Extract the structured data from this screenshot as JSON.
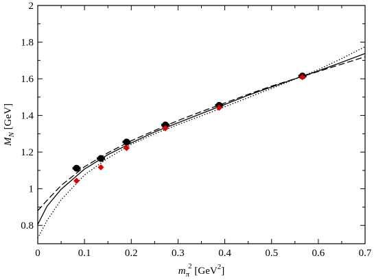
{
  "chart_data": {
    "type": "scatter",
    "xlabel": {
      "main": "m",
      "sub": "π",
      "sup": "2",
      "units_pre": " [GeV",
      "units_sup": "2",
      "units_post": "]"
    },
    "ylabel": {
      "main": "M",
      "sub": "N",
      "units": " [GeV]"
    },
    "xlim": [
      0,
      0.7
    ],
    "ylim": [
      0.7,
      2.0
    ],
    "xticks": [
      0,
      0.1,
      0.2,
      0.3,
      0.4,
      0.5,
      0.6,
      0.7
    ],
    "yticks": [
      0.8,
      1.0,
      1.2,
      1.4,
      1.6,
      1.8,
      2.0
    ],
    "xtick_labels": [
      "0",
      "0.1",
      "0.2",
      "0.3",
      "0.4",
      "0.5",
      "0.6",
      "0.7"
    ],
    "ytick_labels": [
      "0.8",
      "1",
      "1.2",
      "1.4",
      "1.6",
      "1.8",
      "2"
    ],
    "grid": false,
    "series": [
      {
        "marker": "circle",
        "color": "#000000",
        "points": [
          {
            "x": 0.083,
            "y": 1.112,
            "xerr": 0.008,
            "yerr": 0.015
          },
          {
            "x": 0.135,
            "y": 1.165,
            "xerr": 0.008,
            "yerr": 0.012
          },
          {
            "x": 0.19,
            "y": 1.255,
            "xerr": 0.008,
            "yerr": 0.012
          },
          {
            "x": 0.273,
            "y": 1.348,
            "xerr": 0.008,
            "yerr": 0.012
          },
          {
            "x": 0.388,
            "y": 1.455,
            "xerr": 0.008,
            "yerr": 0.012
          },
          {
            "x": 0.566,
            "y": 1.615,
            "xerr": 0.008,
            "yerr": 0.012
          }
        ]
      },
      {
        "marker": "diamond",
        "color": "#e00000",
        "points": [
          {
            "x": 0.083,
            "y": 1.043
          },
          {
            "x": 0.135,
            "y": 1.117
          },
          {
            "x": 0.19,
            "y": 1.222
          },
          {
            "x": 0.273,
            "y": 1.33
          },
          {
            "x": 0.388,
            "y": 1.442
          },
          {
            "x": 0.566,
            "y": 1.609
          }
        ]
      }
    ],
    "curves": [
      {
        "style": "solid",
        "points": [
          [
            0.0,
            0.805
          ],
          [
            0.02,
            0.905
          ],
          [
            0.05,
            0.997
          ],
          [
            0.1,
            1.107
          ],
          [
            0.15,
            1.186
          ],
          [
            0.2,
            1.25
          ],
          [
            0.25,
            1.31
          ],
          [
            0.3,
            1.36
          ],
          [
            0.35,
            1.41
          ],
          [
            0.4,
            1.46
          ],
          [
            0.45,
            1.51
          ],
          [
            0.5,
            1.555
          ],
          [
            0.55,
            1.6
          ],
          [
            0.6,
            1.643
          ],
          [
            0.65,
            1.69
          ],
          [
            0.7,
            1.738
          ]
        ]
      },
      {
        "style": "dashed",
        "points": [
          [
            0.0,
            0.88
          ],
          [
            0.02,
            0.937
          ],
          [
            0.05,
            1.018
          ],
          [
            0.1,
            1.12
          ],
          [
            0.15,
            1.196
          ],
          [
            0.2,
            1.262
          ],
          [
            0.25,
            1.318
          ],
          [
            0.3,
            1.372
          ],
          [
            0.35,
            1.421
          ],
          [
            0.4,
            1.468
          ],
          [
            0.45,
            1.515
          ],
          [
            0.5,
            1.56
          ],
          [
            0.55,
            1.6
          ],
          [
            0.6,
            1.64
          ],
          [
            0.65,
            1.68
          ],
          [
            0.7,
            1.72
          ]
        ]
      },
      {
        "style": "dotted",
        "points": [
          [
            0.0,
            0.73
          ],
          [
            0.02,
            0.827
          ],
          [
            0.05,
            0.94
          ],
          [
            0.1,
            1.075
          ],
          [
            0.15,
            1.167
          ],
          [
            0.2,
            1.242
          ],
          [
            0.25,
            1.3
          ],
          [
            0.3,
            1.35
          ],
          [
            0.35,
            1.398
          ],
          [
            0.4,
            1.447
          ],
          [
            0.45,
            1.497
          ],
          [
            0.5,
            1.547
          ],
          [
            0.55,
            1.598
          ],
          [
            0.6,
            1.65
          ],
          [
            0.65,
            1.71
          ],
          [
            0.7,
            1.775
          ]
        ]
      }
    ]
  }
}
